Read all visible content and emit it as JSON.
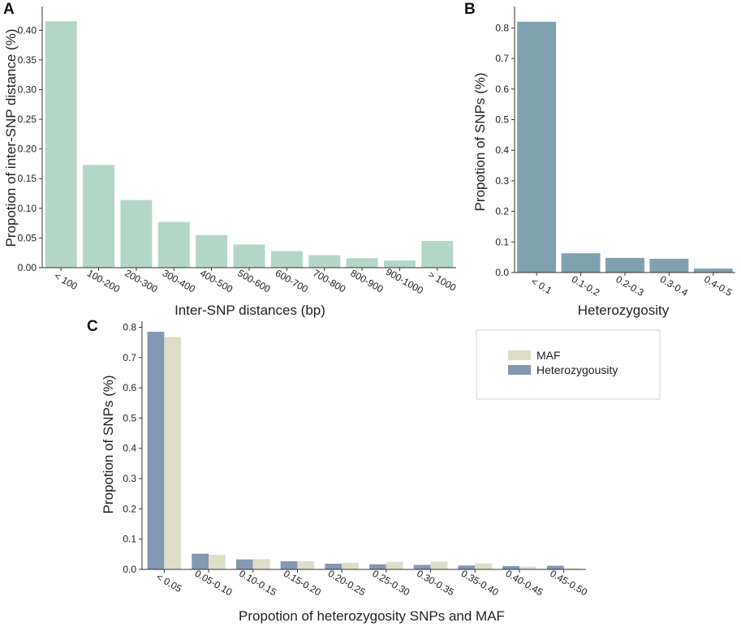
{
  "chart_data": [
    {
      "panel": "A",
      "type": "bar",
      "title": "",
      "xlabel": "Inter-SNP distances (bp)",
      "ylabel": "Propotion of inter-SNP distance (%)",
      "categories": [
        "< 100",
        "100-200",
        "200-300",
        "300-400",
        "400-500",
        "500-600",
        "600-700",
        "700-800",
        "800-900",
        "900-1000",
        "> 1000"
      ],
      "values": [
        0.415,
        0.173,
        0.114,
        0.077,
        0.055,
        0.039,
        0.028,
        0.021,
        0.016,
        0.012,
        0.045
      ],
      "ylim": [
        0,
        0.44
      ],
      "yticks": [
        "0.00",
        "0.05",
        "0.10",
        "0.15",
        "0.20",
        "0.25",
        "0.30",
        "0.35",
        "0.40"
      ],
      "color": "#b3d6c7"
    },
    {
      "panel": "B",
      "type": "bar",
      "title": "",
      "xlabel": "Heterozygosity",
      "ylabel": "Propotion of SNPs (%)",
      "categories": [
        "< 0.1",
        "0.1-0.2",
        "0.2-0.3",
        "0.3-0.4",
        "0.4-0.5"
      ],
      "values": [
        0.82,
        0.063,
        0.048,
        0.045,
        0.013
      ],
      "ylim": [
        0,
        0.87
      ],
      "yticks": [
        "0.0",
        "0.1",
        "0.2",
        "0.3",
        "0.4",
        "0.5",
        "0.6",
        "0.7",
        "0.8"
      ],
      "color": "#7fa1ad"
    },
    {
      "panel": "C",
      "type": "bar",
      "title": "",
      "xlabel": "Propotion of heterozygosity SNPs and MAF",
      "ylabel": "Propotion of SNPs (%)",
      "categories": [
        "< 0.05",
        "0.05-0.10",
        "0.10-0.15",
        "0.15-0.20",
        "0.20-0.25",
        "0.25-0.30",
        "0.30-0.35",
        "0.35-0.40",
        "0.40-0.45",
        "0.45-0.50"
      ],
      "series": [
        {
          "name": "Heterozygousity",
          "color": "#8497b3",
          "values": [
            0.785,
            0.052,
            0.033,
            0.027,
            0.019,
            0.017,
            0.015,
            0.013,
            0.011,
            0.012
          ]
        },
        {
          "name": "MAF",
          "color": "#ddddc8",
          "values": [
            0.768,
            0.048,
            0.034,
            0.027,
            0.022,
            0.025,
            0.026,
            0.02,
            0.009,
            0.003
          ]
        }
      ],
      "legend_order": [
        "MAF",
        "Heterozygousity"
      ],
      "legend_position": "top-right",
      "ylim": [
        0,
        0.82
      ],
      "yticks": [
        "0.0",
        "0.1",
        "0.2",
        "0.3",
        "0.4",
        "0.5",
        "0.6",
        "0.7",
        "0.8"
      ]
    }
  ]
}
